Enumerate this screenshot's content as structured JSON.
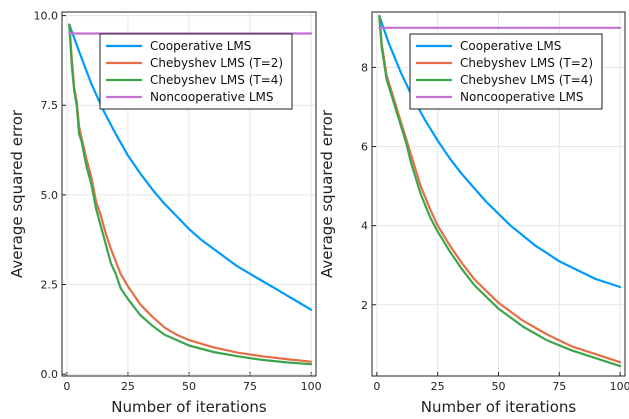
{
  "chart_data": [
    {
      "type": "line",
      "xlabel": "Number of iterations",
      "ylabel": "Average squared error",
      "xlim": [
        -2,
        102
      ],
      "ylim": [
        -0.05,
        10.1
      ],
      "xticks": [
        "0",
        "25",
        "50",
        "75",
        "100"
      ],
      "yticks": [
        "0.0",
        "2.5",
        "5.0",
        "7.5",
        "10.0"
      ],
      "grid": true,
      "legend_position": "top-right",
      "series": [
        {
          "name": "Cooperative LMS",
          "color": "#009AFA",
          "x": [
            1,
            5,
            10,
            15,
            20,
            25,
            30,
            35,
            40,
            45,
            50,
            55,
            60,
            65,
            70,
            75,
            80,
            85,
            90,
            95,
            100
          ],
          "y": [
            9.75,
            9.0,
            8.1,
            7.35,
            6.7,
            6.1,
            5.6,
            5.15,
            4.75,
            4.4,
            4.05,
            3.75,
            3.5,
            3.25,
            3.0,
            2.8,
            2.6,
            2.4,
            2.2,
            2.0,
            1.8
          ]
        },
        {
          "name": "Chebyshev LMS (T=2)",
          "color": "#E26F46",
          "x": [
            1,
            2,
            3,
            4,
            5,
            6,
            8,
            10,
            12,
            14,
            16,
            18,
            20,
            22,
            25,
            30,
            35,
            40,
            45,
            50,
            60,
            70,
            80,
            90,
            100
          ],
          "y": [
            9.75,
            8.8,
            8.0,
            7.6,
            6.9,
            6.6,
            6.0,
            5.5,
            4.8,
            4.4,
            3.9,
            3.5,
            3.15,
            2.8,
            2.45,
            1.95,
            1.6,
            1.3,
            1.1,
            0.95,
            0.75,
            0.6,
            0.5,
            0.42,
            0.35
          ]
        },
        {
          "name": "Chebyshev LMS (T=4)",
          "color": "#3DA44D",
          "x": [
            1,
            2,
            3,
            4,
            5,
            6,
            8,
            10,
            12,
            14,
            16,
            18,
            20,
            22,
            25,
            30,
            35,
            40,
            45,
            50,
            60,
            70,
            80,
            90,
            100
          ],
          "y": [
            9.75,
            8.6,
            7.9,
            7.5,
            6.7,
            6.5,
            5.8,
            5.3,
            4.6,
            4.1,
            3.6,
            3.1,
            2.8,
            2.4,
            2.1,
            1.65,
            1.35,
            1.1,
            0.95,
            0.8,
            0.62,
            0.5,
            0.4,
            0.33,
            0.28
          ]
        },
        {
          "name": "Noncooperative LMS",
          "color": "#C271D2",
          "x": [
            1,
            100
          ],
          "y": [
            9.5,
            9.5
          ]
        }
      ]
    },
    {
      "type": "line",
      "xlabel": "Number of iterations",
      "ylabel": "Average squared error",
      "xlim": [
        -2,
        102
      ],
      "ylim": [
        0.2,
        9.4
      ],
      "xticks": [
        "0",
        "25",
        "50",
        "75",
        "100"
      ],
      "yticks": [
        "2",
        "4",
        "6",
        "8"
      ],
      "grid": true,
      "legend_position": "top-right",
      "series": [
        {
          "name": "Cooperative LMS",
          "color": "#009AFA",
          "x": [
            1,
            5,
            10,
            15,
            20,
            25,
            30,
            35,
            40,
            45,
            50,
            55,
            60,
            65,
            70,
            75,
            80,
            85,
            90,
            95,
            100
          ],
          "y": [
            9.3,
            8.6,
            7.85,
            7.2,
            6.65,
            6.15,
            5.7,
            5.3,
            4.95,
            4.6,
            4.3,
            4.0,
            3.75,
            3.5,
            3.3,
            3.1,
            2.95,
            2.8,
            2.65,
            2.55,
            2.45
          ]
        },
        {
          "name": "Chebyshev LMS (T=2)",
          "color": "#E26F46",
          "x": [
            1,
            2,
            3,
            4,
            5,
            6,
            8,
            10,
            12,
            14,
            16,
            18,
            20,
            22,
            25,
            30,
            35,
            40,
            45,
            50,
            60,
            70,
            80,
            90,
            100
          ],
          "y": [
            9.3,
            8.6,
            8.2,
            7.8,
            7.6,
            7.4,
            7.0,
            6.6,
            6.2,
            5.8,
            5.4,
            5.0,
            4.7,
            4.4,
            4.0,
            3.5,
            3.05,
            2.65,
            2.35,
            2.05,
            1.6,
            1.25,
            0.95,
            0.75,
            0.55
          ]
        },
        {
          "name": "Chebyshev LMS (T=4)",
          "color": "#3DA44D",
          "x": [
            1,
            2,
            3,
            4,
            5,
            6,
            8,
            10,
            12,
            14,
            16,
            18,
            20,
            22,
            25,
            30,
            35,
            40,
            45,
            50,
            60,
            70,
            80,
            90,
            100
          ],
          "y": [
            9.3,
            8.5,
            8.1,
            7.7,
            7.5,
            7.3,
            6.9,
            6.5,
            6.1,
            5.6,
            5.2,
            4.8,
            4.5,
            4.2,
            3.85,
            3.35,
            2.9,
            2.5,
            2.2,
            1.9,
            1.45,
            1.1,
            0.85,
            0.65,
            0.45
          ]
        },
        {
          "name": "Noncooperative LMS",
          "color": "#C271D2",
          "x": [
            1,
            100
          ],
          "y": [
            9.0,
            9.0
          ]
        }
      ]
    }
  ]
}
